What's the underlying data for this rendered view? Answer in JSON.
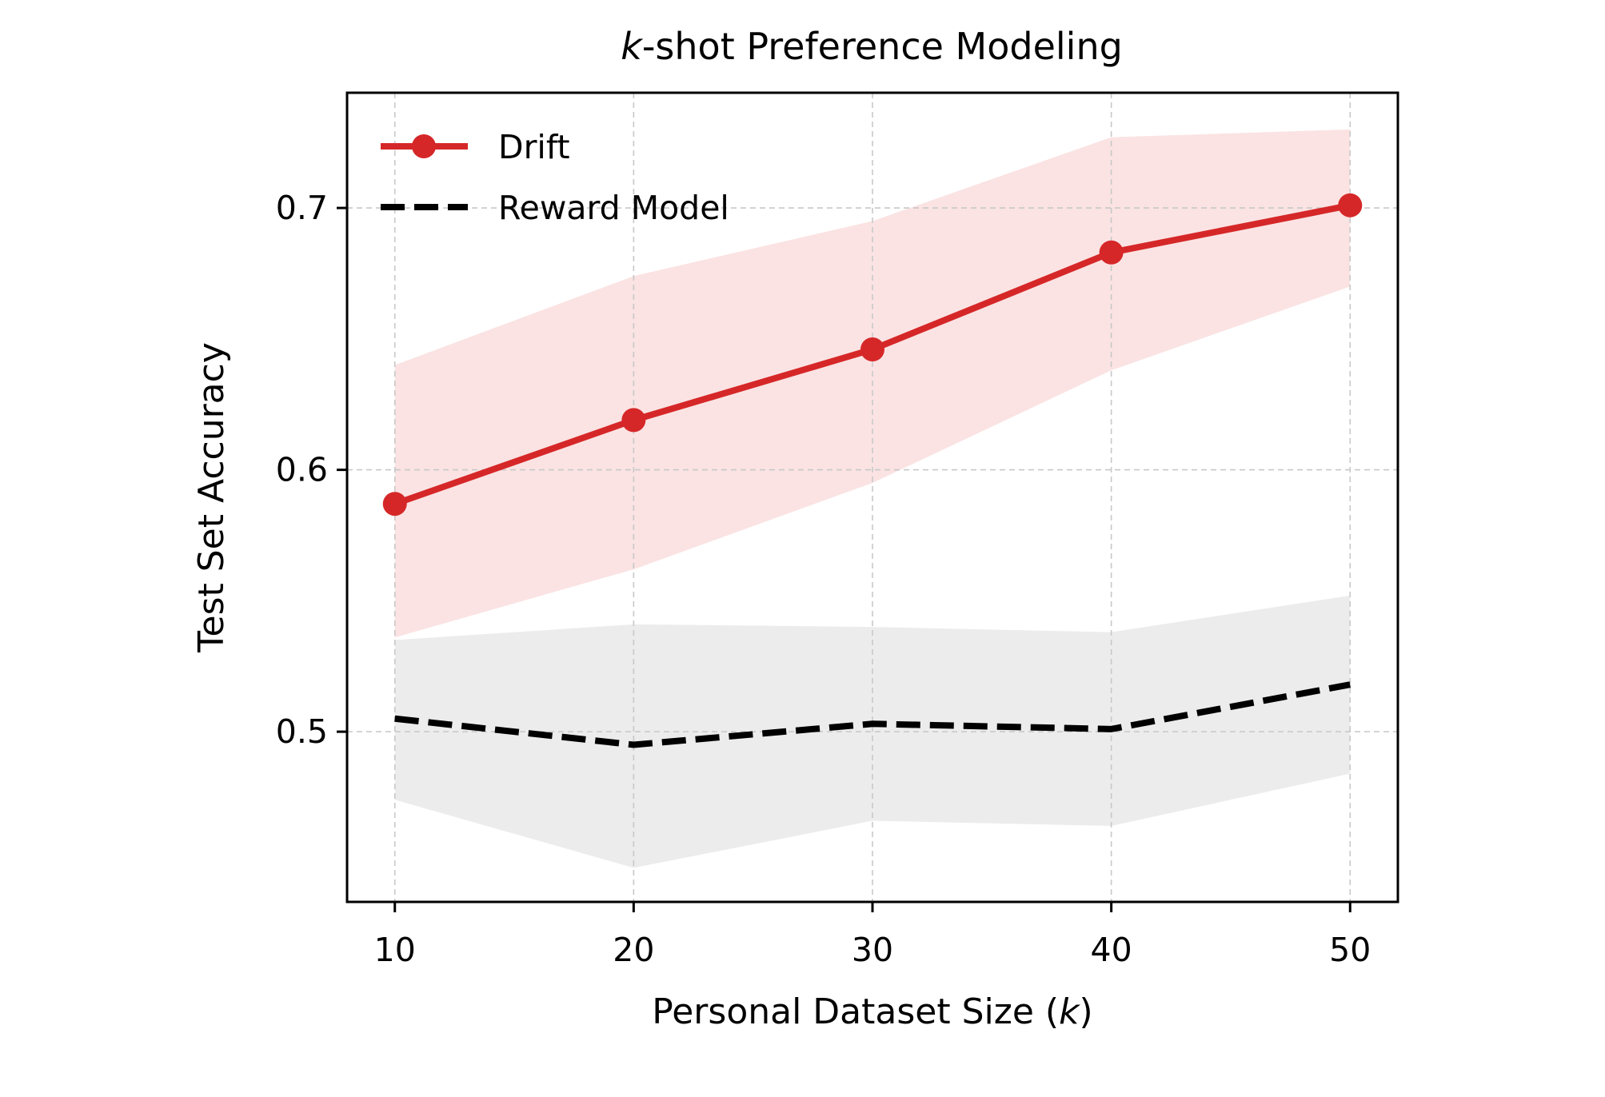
{
  "chart_data": {
    "type": "line",
    "title_italic": "k",
    "title_rest": "-shot Preference Modeling",
    "xlabel_main": "Personal Dataset Size (",
    "xlabel_italic": "k",
    "xlabel_end": ")",
    "ylabel": "Test Set Accuracy",
    "x": [
      10,
      20,
      30,
      40,
      50
    ],
    "xlim": [
      8,
      52
    ],
    "ylim": [
      0.435,
      0.744
    ],
    "xticks": [
      10,
      20,
      30,
      40,
      50
    ],
    "yticks": [
      0.5,
      0.6,
      0.7
    ],
    "xtick_labels": [
      "10",
      "20",
      "30",
      "40",
      "50"
    ],
    "ytick_labels": [
      "0.5",
      "0.6",
      "0.7"
    ],
    "grid": true,
    "legend_position": "top-left",
    "series": [
      {
        "name": "Drift",
        "style": "solid-marker",
        "color": "#d62728",
        "band_color": "#fbe3e3",
        "values": [
          0.587,
          0.619,
          0.646,
          0.683,
          0.701
        ],
        "lower": [
          0.536,
          0.562,
          0.595,
          0.638,
          0.67
        ],
        "upper": [
          0.64,
          0.674,
          0.695,
          0.727,
          0.73
        ]
      },
      {
        "name": "Reward Model",
        "style": "dashed",
        "color": "#000000",
        "band_color": "#ececec",
        "values": [
          0.505,
          0.495,
          0.503,
          0.501,
          0.518
        ],
        "lower": [
          0.474,
          0.448,
          0.466,
          0.464,
          0.484
        ],
        "upper": [
          0.535,
          0.541,
          0.54,
          0.538,
          0.552
        ]
      }
    ]
  }
}
